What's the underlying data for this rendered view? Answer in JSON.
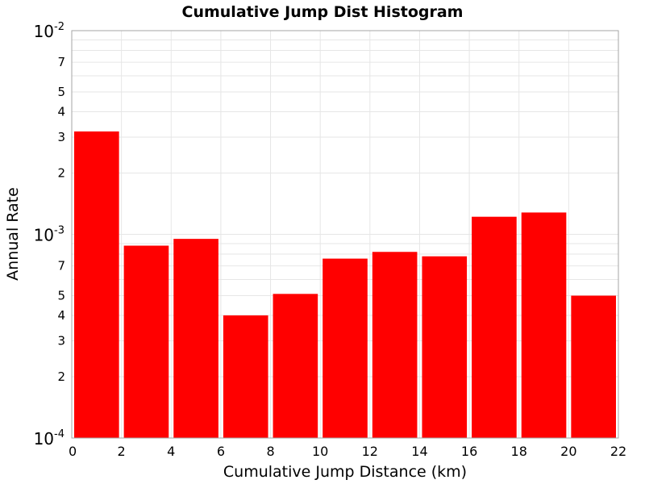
{
  "chart_data": {
    "type": "bar",
    "title": "Cumulative Jump Dist Histogram",
    "xlabel": "Cumulative Jump Distance (km)",
    "ylabel": "Annual Rate",
    "yscale": "log",
    "xlim": [
      0,
      22
    ],
    "ylim": [
      0.0001,
      0.01
    ],
    "grid": true,
    "x_ticks": [
      0,
      2,
      4,
      6,
      8,
      10,
      12,
      14,
      16,
      18,
      20,
      22
    ],
    "y_decade_ticks": [
      {
        "value": 0.01,
        "mantissa": "10",
        "exponent": "-2"
      },
      {
        "value": 0.001,
        "mantissa": "10",
        "exponent": "-3"
      },
      {
        "value": 0.0001,
        "mantissa": "10",
        "exponent": "-4"
      }
    ],
    "y_minor_labels": [
      {
        "value": 0.007,
        "label": "7"
      },
      {
        "value": 0.005,
        "label": "5"
      },
      {
        "value": 0.004,
        "label": "4"
      },
      {
        "value": 0.003,
        "label": "3"
      },
      {
        "value": 0.002,
        "label": "2"
      },
      {
        "value": 0.0007,
        "label": "7"
      },
      {
        "value": 0.0005,
        "label": "5"
      },
      {
        "value": 0.0004,
        "label": "4"
      },
      {
        "value": 0.0003,
        "label": "3"
      },
      {
        "value": 0.0002,
        "label": "2"
      }
    ],
    "bars": [
      {
        "x0": 0,
        "x1": 2,
        "value": 0.0032
      },
      {
        "x0": 2,
        "x1": 4,
        "value": 0.00088
      },
      {
        "x0": 4,
        "x1": 6,
        "value": 0.00095
      },
      {
        "x0": 6,
        "x1": 8,
        "value": 0.0004
      },
      {
        "x0": 8,
        "x1": 10,
        "value": 0.00051
      },
      {
        "x0": 10,
        "x1": 12,
        "value": 0.00076
      },
      {
        "x0": 12,
        "x1": 14,
        "value": 0.00082
      },
      {
        "x0": 14,
        "x1": 16,
        "value": 0.00078
      },
      {
        "x0": 16,
        "x1": 18,
        "value": 0.00122
      },
      {
        "x0": 18,
        "x1": 20,
        "value": 0.00128
      },
      {
        "x0": 20,
        "x1": 22,
        "value": 0.0005
      }
    ],
    "bar_color": "#ff0000"
  }
}
